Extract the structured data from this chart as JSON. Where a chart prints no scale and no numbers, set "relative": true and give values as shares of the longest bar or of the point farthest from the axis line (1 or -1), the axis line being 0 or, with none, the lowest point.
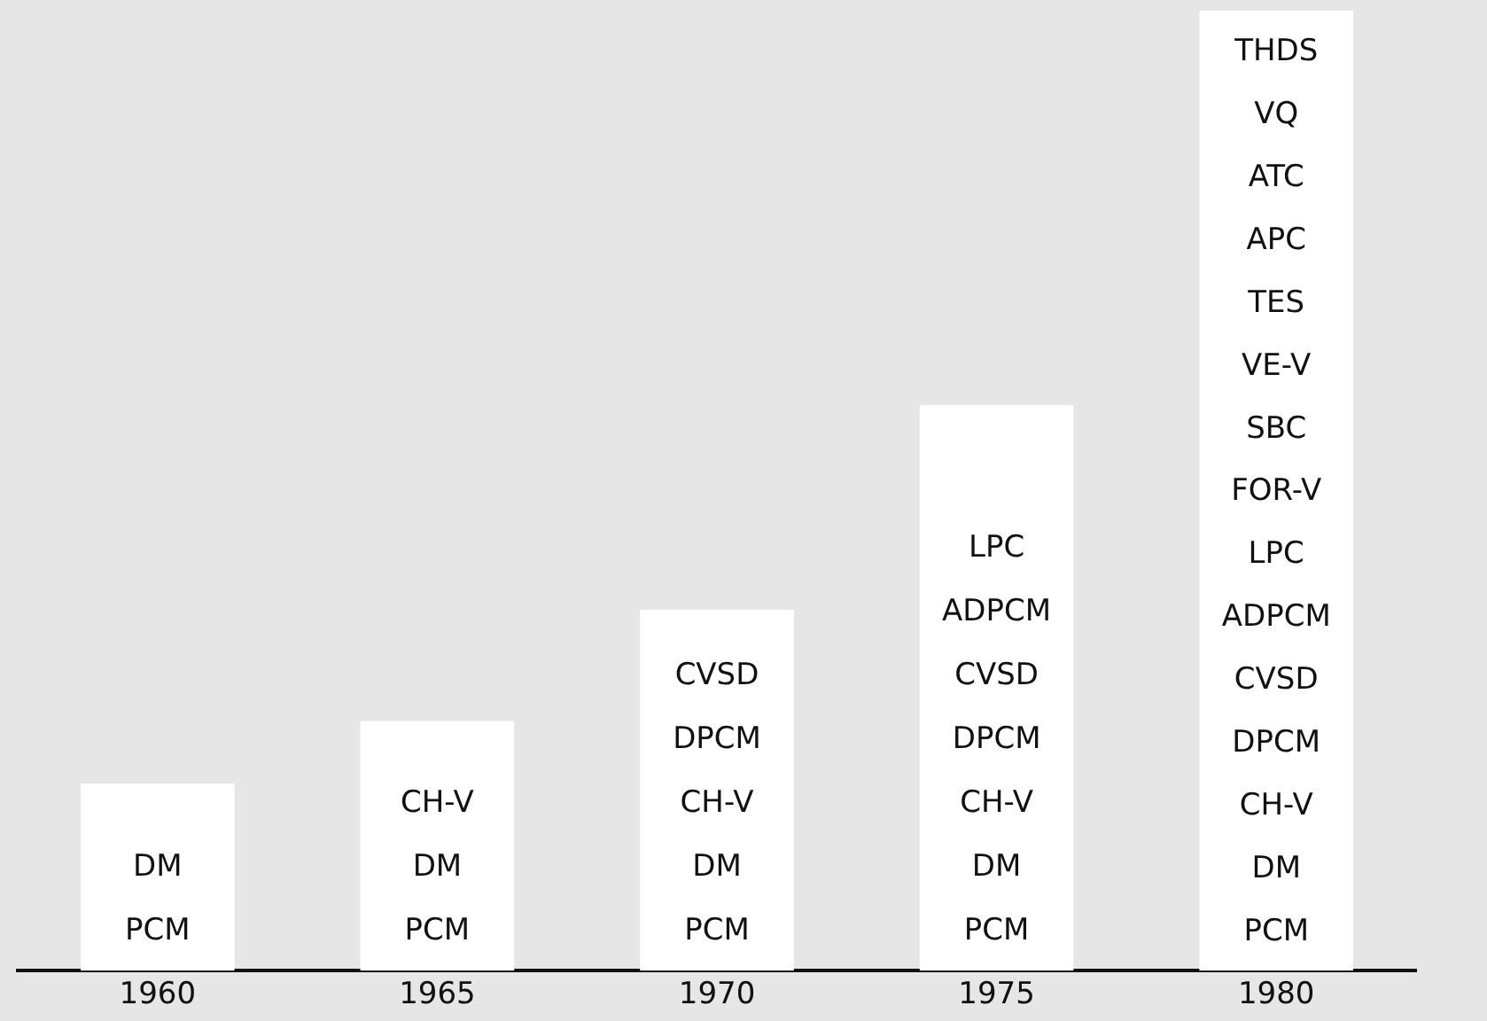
{
  "chart_data": {
    "type": "bar",
    "relative": true,
    "categories": [
      "1960",
      "1965",
      "1970",
      "1975",
      "1980"
    ],
    "values": [
      0.195,
      0.26,
      0.376,
      0.589,
      1
    ],
    "color": "#ffffff",
    "annotations": [
      "DM\nPCM",
      "CH-V\nDM\nPCM",
      "CVSD\nDPCM\nCH-V\nDM\nPCM",
      "LPC\nADPCM\nCVSD\nDPCM\nCH-V\nDM\nPCM",
      "THDS\nVQ\nATC\nAPC\nTES\nVE-V\nSBC\nFOR-V\nLPC\nADPCM\nCVSD\nDPCM\nCH-V\nDM\nPCM"
    ]
  }
}
